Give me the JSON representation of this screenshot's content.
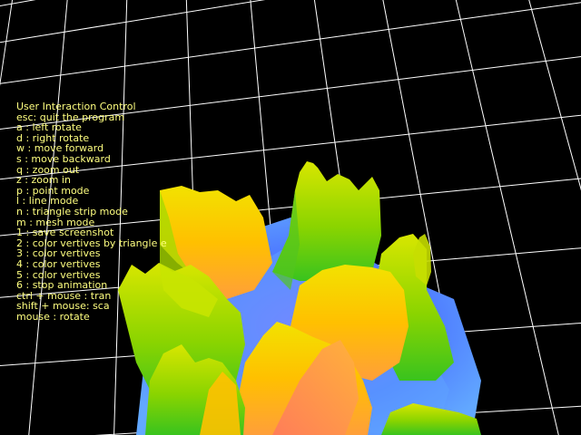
{
  "window": {
    "background": "#000000",
    "grid_color": "#ffffff",
    "text_color": "#ffff80"
  },
  "help": {
    "title": "User Interaction Control",
    "lines": [
      "esc: quit the program",
      "a : left rotate",
      "d : right rotate",
      "w : move forward",
      "s : move backward",
      "q : zoom out",
      "z : zoom in",
      "p : point mode",
      "l : line mode",
      "n : triangle strip mode",
      "m : mesh mode",
      "1 : save screenshot",
      "2 : color vertives by triangle e",
      "3 : color vertives",
      "4 : color vertives",
      "5 : color vertives",
      "6 : stop animation",
      "ctrl + mouse : tran",
      "shift + mouse: sca",
      "mouse : rotate"
    ]
  },
  "scene": {
    "render_mode": "triangle-strip heightfield",
    "color_ramp": [
      "#3f6fff",
      "#5aa0ff",
      "#2fd02f",
      "#9ae000",
      "#e6e000",
      "#ffb000",
      "#ff7a40"
    ]
  }
}
